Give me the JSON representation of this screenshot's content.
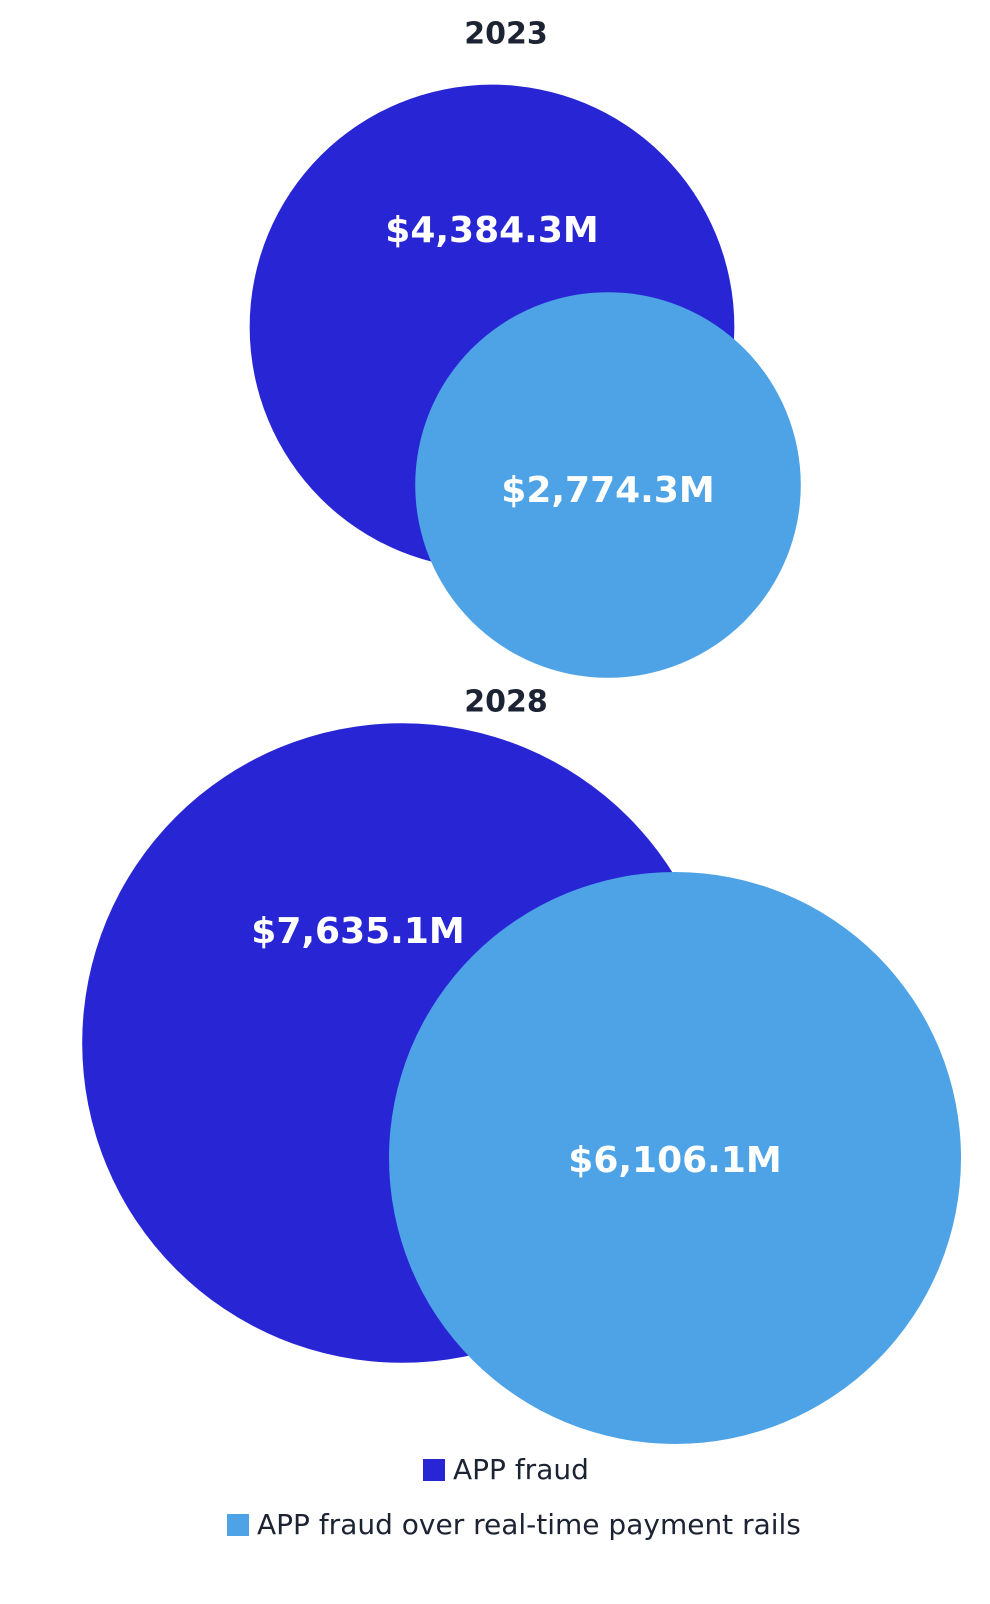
{
  "chart_data": {
    "type": "bubble",
    "categories": [
      "2023",
      "2028"
    ],
    "series": [
      {
        "name": "APP fraud",
        "color": "#2826d4",
        "values": [
          4384.3,
          7635.1
        ],
        "value_labels": [
          "$4,384.3M",
          "$7,635.1M"
        ]
      },
      {
        "name": "APP fraud over real-time payment rails",
        "color": "#4da3e6",
        "values": [
          2774.3,
          6106.1
        ],
        "value_labels": [
          "$2,774.3M",
          "$6,106.1M"
        ]
      }
    ]
  }
}
